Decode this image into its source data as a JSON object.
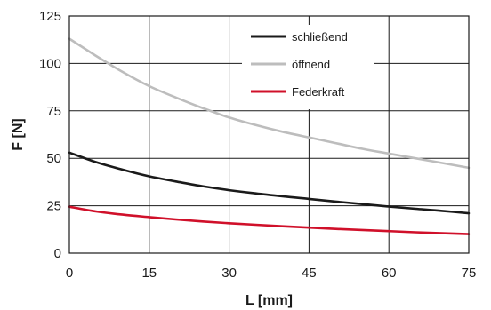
{
  "chart_data": {
    "type": "line",
    "xlabel": "L [mm]",
    "ylabel": "F [N]",
    "xlim": [
      0,
      75
    ],
    "ylim": [
      0,
      125
    ],
    "xticks": [
      0,
      15,
      30,
      45,
      60,
      75
    ],
    "yticks": [
      0,
      25,
      50,
      75,
      100,
      125
    ],
    "grid": true,
    "legend": "top-right",
    "series": [
      {
        "name": "schließend",
        "color": "#1a1a1a",
        "x": [
          0,
          5,
          10,
          15,
          20,
          25,
          30,
          35,
          40,
          45,
          50,
          55,
          60,
          65,
          70,
          75
        ],
        "y": [
          53,
          48,
          44,
          40.5,
          37.8,
          35.3,
          33.2,
          31.5,
          30,
          28.6,
          27.2,
          25.9,
          24.6,
          23.4,
          22.3,
          21
        ]
      },
      {
        "name": "öffnend",
        "color": "#bdbdbd",
        "x": [
          0,
          5,
          10,
          15,
          20,
          25,
          30,
          35,
          40,
          45,
          50,
          55,
          60,
          65,
          70,
          75
        ],
        "y": [
          113,
          104,
          95.5,
          88,
          82,
          76.5,
          71.5,
          67.5,
          64,
          61,
          58,
          55,
          52.5,
          50,
          47.5,
          45
        ]
      },
      {
        "name": "Federkraft",
        "color": "#d0102a",
        "x": [
          0,
          5,
          10,
          15,
          20,
          25,
          30,
          35,
          40,
          45,
          50,
          55,
          60,
          65,
          70,
          75
        ],
        "y": [
          24.5,
          22,
          20.3,
          19,
          17.8,
          16.7,
          15.8,
          15,
          14.2,
          13.5,
          12.8,
          12.2,
          11.6,
          11,
          10.5,
          10
        ]
      }
    ]
  }
}
